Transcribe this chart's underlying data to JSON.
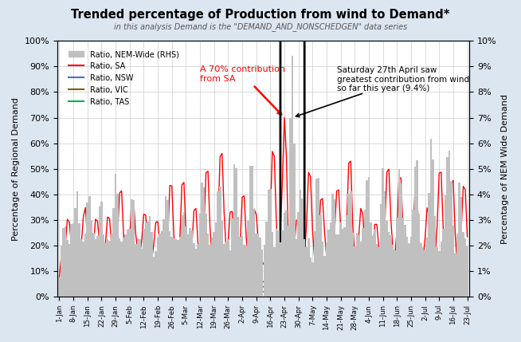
{
  "title": "Trended percentage of Production from wind to Demand*",
  "subtitle": "in this analysis Demand is the \"DEMAND_AND_NONSCHEDGEN\" data series",
  "ylabel_left": "Percentage of Regional Demand",
  "ylabel_right": "Percentage of NEM Wide Demand",
  "fig_bg": "#dce6f1",
  "plot_bg": "#ffffff",
  "colors": {
    "nem_wide": "#c0c0c0",
    "sa": "#ff0000",
    "nsw": "#4472c4",
    "vic": "#7f6000",
    "tas": "#00b050"
  },
  "annotation1_text": "A 70% contribution\nfrom SA",
  "annotation1_color": "#ff0000",
  "annotation2_text": "Saturday 27th April saw\ngreatest contribution from wind\nso far this year (9.4%)",
  "x_tick_labels": [
    "1-Jan",
    "8-Jan",
    "15-Jan",
    "22-Jan",
    "29-Jan",
    "5-Feb",
    "12-Feb",
    "19-Feb",
    "26-Feb",
    "5-Mar",
    "12-Mar",
    "19-Mar",
    "26-Mar",
    "2-Apr",
    "9-Apr",
    "16-Apr",
    "23-Apr",
    "30-Apr",
    "7-May",
    "14-May",
    "21-May",
    "28-May",
    "4-Jun",
    "11-Jun",
    "18-Jun",
    "25-Jun",
    "2-Jul",
    "9-Jul",
    "16-Jul",
    "23-Jul"
  ],
  "ylim_left": [
    0,
    1.0
  ],
  "ylim_right": [
    0,
    0.1
  ],
  "ytick_labels_left": [
    "0%",
    "10%",
    "20%",
    "30%",
    "40%",
    "50%",
    "60%",
    "70%",
    "80%",
    "90%",
    "100%"
  ],
  "ytick_labels_right": [
    "0%",
    "1%",
    "2%",
    "3%",
    "4%",
    "5%",
    "6%",
    "7%",
    "8%",
    "9%",
    "10%"
  ]
}
